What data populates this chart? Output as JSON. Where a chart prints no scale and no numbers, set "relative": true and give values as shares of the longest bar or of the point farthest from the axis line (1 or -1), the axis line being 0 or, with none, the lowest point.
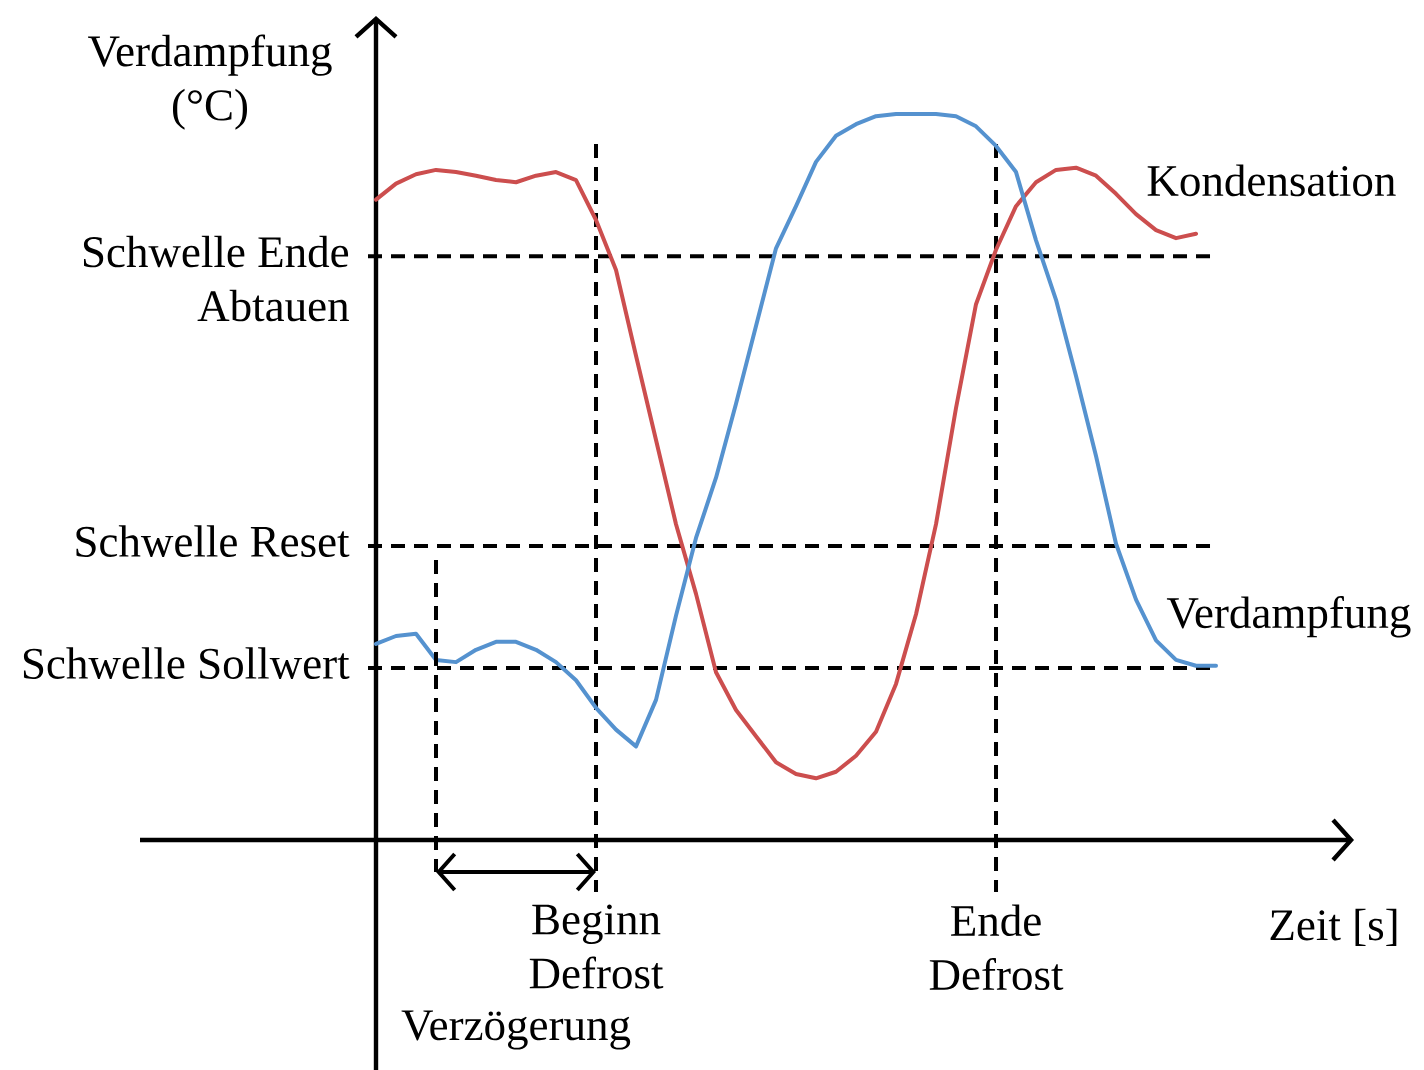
{
  "chart_data": {
    "type": "line",
    "relative": true,
    "xlabel": "Zeit [s]",
    "ylabel": "Verdampfung (°C)",
    "categories": [
      null,
      null,
      null,
      null,
      null,
      null,
      null,
      null,
      null,
      null,
      null,
      "Beginn Defrost",
      null,
      null,
      null,
      null,
      null,
      null,
      null,
      null,
      null,
      null,
      null,
      null,
      null,
      null,
      null,
      null,
      null,
      null,
      null,
      "Ende Defrost",
      null,
      null,
      null,
      null,
      null,
      null,
      null,
      null,
      null,
      null,
      null
    ],
    "series": [
      {
        "name": "Kondensation",
        "color": "#cc4e4e",
        "values": [
          0.882,
          0.904,
          0.917,
          0.923,
          0.92,
          0.915,
          0.909,
          0.906,
          0.915,
          0.92,
          0.909,
          0.854,
          0.785,
          0.667,
          0.551,
          0.435,
          0.339,
          0.231,
          0.179,
          0.143,
          0.107,
          0.091,
          0.085,
          0.094,
          0.116,
          0.149,
          0.215,
          0.311,
          0.435,
          0.595,
          0.738,
          0.813,
          0.873,
          0.906,
          0.923,
          0.926,
          0.915,
          0.89,
          0.862,
          0.84,
          0.829,
          0.835,
          null
        ]
      },
      {
        "name": "Verdampfung",
        "color": "#5592cf",
        "values": [
          0.27,
          0.281,
          0.284,
          0.248,
          0.245,
          0.262,
          0.273,
          0.273,
          0.262,
          0.245,
          0.22,
          0.182,
          0.152,
          0.129,
          0.193,
          0.309,
          0.416,
          0.499,
          0.601,
          0.708,
          0.815,
          0.873,
          0.934,
          0.97,
          0.986,
          0.997,
          1,
          1,
          1,
          0.997,
          0.983,
          0.956,
          0.92,
          0.826,
          0.744,
          0.639,
          0.529,
          0.408,
          0.331,
          0.275,
          0.248,
          0.24,
          0.24
        ]
      }
    ],
    "ref_lines": [
      {
        "axis": "y",
        "value": 0.804,
        "label": "Schwelle Ende Abtauen",
        "line_style": "dashed"
      },
      {
        "axis": "y",
        "value": 0.405,
        "label": "Schwelle Reset",
        "line_style": "dashed"
      },
      {
        "axis": "y",
        "value": 0.237,
        "label": "Schwelle Sollwert",
        "line_style": "dashed"
      },
      {
        "axis": "x",
        "value": "Beginn Defrost",
        "line_style": "dashed"
      },
      {
        "axis": "x",
        "value": "Ende Defrost",
        "line_style": "dashed"
      }
    ],
    "annotations": [
      "Verzögerung"
    ]
  }
}
